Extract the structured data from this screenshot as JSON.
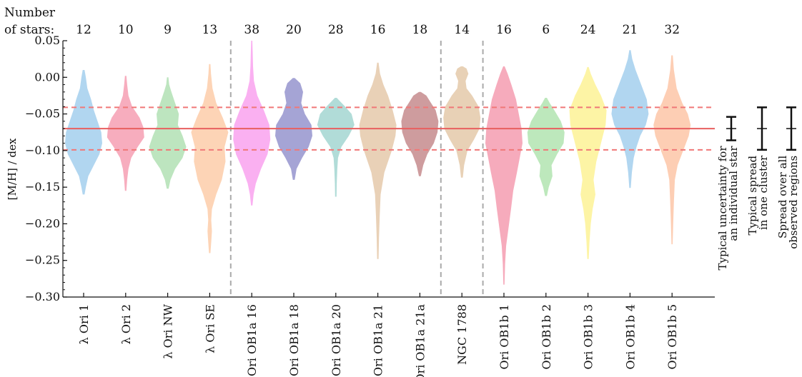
{
  "chart_data": {
    "type": "violin",
    "ylabel": "[M/H] / dex",
    "ylim": [
      -0.3,
      0.05
    ],
    "yticks": [
      0.05,
      0.0,
      -0.05,
      -0.1,
      -0.15,
      -0.2,
      -0.25,
      -0.3
    ],
    "ytick_labels": [
      "0.05",
      "0.00",
      "−0.05",
      "−0.10",
      "−0.15",
      "−0.20",
      "−0.25",
      "−0.30"
    ],
    "star_count_header": [
      "Number",
      "of stars:"
    ],
    "mean_line": -0.07,
    "spread_lines": [
      -0.041,
      -0.099
    ],
    "group_separators_after": [
      "λ Ori SE",
      "Ori OB1a 21a",
      "NGC 1788"
    ],
    "categories": [
      "λ Ori 1",
      "λ Ori 2",
      "λ Ori NW",
      "λ Ori SE",
      "Ori OB1a 16",
      "Ori OB1a 18",
      "Ori OB1a 20",
      "Ori OB1a 21",
      "Ori OB1a 21a",
      "NGC 1788",
      "Ori OB1b 1",
      "Ori OB1b 2",
      "Ori OB1b 3",
      "Ori OB1b 4",
      "Ori OB1b 5"
    ],
    "star_counts": [
      12,
      10,
      9,
      13,
      38,
      20,
      28,
      16,
      18,
      14,
      16,
      6,
      24,
      21,
      32
    ],
    "colors": [
      "#a9d2ee",
      "#f6a4b7",
      "#b6e2b8",
      "#fdcfae",
      "#f9a7ef",
      "#9b9ad0",
      "#a9d8d4",
      "#e7ccaf",
      "#c99194",
      "#e6ccae",
      "#f5a2b5",
      "#b6e6b5",
      "#fdf39b",
      "#a9d1ee",
      "#fdc9ac"
    ],
    "violins": [
      {
        "min": -0.16,
        "max": 0.01,
        "profile": [
          [
            -0.16,
            0.05
          ],
          [
            -0.15,
            0.12
          ],
          [
            -0.135,
            0.25
          ],
          [
            -0.12,
            0.55
          ],
          [
            -0.105,
            0.85
          ],
          [
            -0.09,
            1.0
          ],
          [
            -0.075,
            0.95
          ],
          [
            -0.06,
            0.75
          ],
          [
            -0.045,
            0.55
          ],
          [
            -0.03,
            0.4
          ],
          [
            -0.015,
            0.2
          ],
          [
            0.0,
            0.12
          ],
          [
            0.01,
            0.05
          ]
        ]
      },
      {
        "min": -0.155,
        "max": 0.002,
        "profile": [
          [
            -0.155,
            0.04
          ],
          [
            -0.14,
            0.08
          ],
          [
            -0.125,
            0.15
          ],
          [
            -0.11,
            0.3
          ],
          [
            -0.095,
            0.65
          ],
          [
            -0.082,
            1.0
          ],
          [
            -0.068,
            0.95
          ],
          [
            -0.055,
            0.75
          ],
          [
            -0.04,
            0.35
          ],
          [
            -0.025,
            0.15
          ],
          [
            -0.01,
            0.08
          ],
          [
            0.002,
            0.04
          ]
        ]
      },
      {
        "min": -0.152,
        "max": 0.0,
        "profile": [
          [
            -0.152,
            0.05
          ],
          [
            -0.14,
            0.15
          ],
          [
            -0.125,
            0.4
          ],
          [
            -0.11,
            0.8
          ],
          [
            -0.095,
            1.0
          ],
          [
            -0.08,
            0.8
          ],
          [
            -0.065,
            0.55
          ],
          [
            -0.05,
            0.6
          ],
          [
            -0.035,
            0.4
          ],
          [
            -0.02,
            0.2
          ],
          [
            -0.01,
            0.08
          ],
          [
            0.0,
            0.04
          ]
        ]
      },
      {
        "min": -0.24,
        "max": 0.018,
        "profile": [
          [
            -0.24,
            0.04
          ],
          [
            -0.225,
            0.08
          ],
          [
            -0.21,
            0.12
          ],
          [
            -0.195,
            0.08
          ],
          [
            -0.18,
            0.12
          ],
          [
            -0.16,
            0.35
          ],
          [
            -0.14,
            0.65
          ],
          [
            -0.115,
            0.85
          ],
          [
            -0.095,
            0.8
          ],
          [
            -0.075,
            1.0
          ],
          [
            -0.055,
            0.7
          ],
          [
            -0.035,
            0.35
          ],
          [
            -0.015,
            0.15
          ],
          [
            0.005,
            0.07
          ],
          [
            0.018,
            0.04
          ]
        ]
      },
      {
        "min": -0.175,
        "max": 0.05,
        "profile": [
          [
            -0.175,
            0.04
          ],
          [
            -0.16,
            0.1
          ],
          [
            -0.145,
            0.22
          ],
          [
            -0.125,
            0.5
          ],
          [
            -0.105,
            0.85
          ],
          [
            -0.085,
            1.0
          ],
          [
            -0.065,
            0.95
          ],
          [
            -0.045,
            0.65
          ],
          [
            -0.025,
            0.3
          ],
          [
            -0.005,
            0.12
          ],
          [
            0.015,
            0.07
          ],
          [
            0.035,
            0.05
          ],
          [
            0.05,
            0.03
          ]
        ]
      },
      {
        "min": -0.14,
        "max": -0.001,
        "profile": [
          [
            -0.14,
            0.05
          ],
          [
            -0.125,
            0.15
          ],
          [
            -0.11,
            0.45
          ],
          [
            -0.095,
            0.8
          ],
          [
            -0.08,
            1.0
          ],
          [
            -0.065,
            0.95
          ],
          [
            -0.05,
            0.6
          ],
          [
            -0.035,
            0.4
          ],
          [
            -0.02,
            0.5
          ],
          [
            -0.008,
            0.35
          ],
          [
            -0.001,
            0.05
          ]
        ]
      },
      {
        "min": -0.163,
        "max": -0.028,
        "profile": [
          [
            -0.163,
            0.04
          ],
          [
            -0.145,
            0.05
          ],
          [
            -0.125,
            0.08
          ],
          [
            -0.11,
            0.12
          ],
          [
            -0.095,
            0.3
          ],
          [
            -0.08,
            0.7
          ],
          [
            -0.065,
            1.0
          ],
          [
            -0.05,
            0.85
          ],
          [
            -0.04,
            0.5
          ],
          [
            -0.032,
            0.2
          ],
          [
            -0.028,
            0.05
          ]
        ]
      },
      {
        "min": -0.248,
        "max": 0.02,
        "profile": [
          [
            -0.248,
            0.04
          ],
          [
            -0.22,
            0.06
          ],
          [
            -0.19,
            0.1
          ],
          [
            -0.16,
            0.15
          ],
          [
            -0.13,
            0.35
          ],
          [
            -0.1,
            0.75
          ],
          [
            -0.08,
            0.95
          ],
          [
            -0.065,
            1.0
          ],
          [
            -0.045,
            0.8
          ],
          [
            -0.025,
            0.55
          ],
          [
            -0.01,
            0.3
          ],
          [
            0.005,
            0.12
          ],
          [
            0.02,
            0.04
          ]
        ]
      },
      {
        "min": -0.135,
        "max": -0.02,
        "profile": [
          [
            -0.135,
            0.05
          ],
          [
            -0.12,
            0.18
          ],
          [
            -0.105,
            0.4
          ],
          [
            -0.09,
            0.75
          ],
          [
            -0.075,
            0.95
          ],
          [
            -0.06,
            1.0
          ],
          [
            -0.045,
            0.85
          ],
          [
            -0.035,
            0.6
          ],
          [
            -0.025,
            0.35
          ],
          [
            -0.02,
            0.05
          ]
        ]
      },
      {
        "min": -0.137,
        "max": 0.015,
        "profile": [
          [
            -0.137,
            0.05
          ],
          [
            -0.12,
            0.12
          ],
          [
            -0.1,
            0.3
          ],
          [
            -0.085,
            0.65
          ],
          [
            -0.07,
            0.95
          ],
          [
            -0.055,
            1.0
          ],
          [
            -0.04,
            0.9
          ],
          [
            -0.025,
            0.55
          ],
          [
            -0.015,
            0.25
          ],
          [
            -0.005,
            0.2
          ],
          [
            0.005,
            0.35
          ],
          [
            0.012,
            0.25
          ],
          [
            0.015,
            0.05
          ]
        ]
      },
      {
        "min": -0.283,
        "max": 0.015,
        "profile": [
          [
            -0.283,
            0.03
          ],
          [
            -0.255,
            0.06
          ],
          [
            -0.23,
            0.12
          ],
          [
            -0.205,
            0.25
          ],
          [
            -0.18,
            0.38
          ],
          [
            -0.155,
            0.5
          ],
          [
            -0.13,
            0.7
          ],
          [
            -0.11,
            0.85
          ],
          [
            -0.09,
            1.0
          ],
          [
            -0.07,
            0.95
          ],
          [
            -0.05,
            0.8
          ],
          [
            -0.03,
            0.65
          ],
          [
            -0.01,
            0.4
          ],
          [
            0.005,
            0.2
          ],
          [
            0.015,
            0.04
          ]
        ]
      },
      {
        "min": -0.162,
        "max": -0.028,
        "profile": [
          [
            -0.162,
            0.05
          ],
          [
            -0.15,
            0.15
          ],
          [
            -0.135,
            0.35
          ],
          [
            -0.12,
            0.3
          ],
          [
            -0.105,
            0.6
          ],
          [
            -0.09,
            0.95
          ],
          [
            -0.075,
            1.0
          ],
          [
            -0.06,
            0.8
          ],
          [
            -0.045,
            0.45
          ],
          [
            -0.035,
            0.2
          ],
          [
            -0.028,
            0.05
          ]
        ]
      },
      {
        "min": -0.248,
        "max": 0.014,
        "profile": [
          [
            -0.248,
            0.04
          ],
          [
            -0.225,
            0.08
          ],
          [
            -0.2,
            0.15
          ],
          [
            -0.18,
            0.25
          ],
          [
            -0.16,
            0.4
          ],
          [
            -0.14,
            0.3
          ],
          [
            -0.115,
            0.45
          ],
          [
            -0.09,
            0.7
          ],
          [
            -0.065,
            0.95
          ],
          [
            -0.045,
            1.0
          ],
          [
            -0.025,
            0.7
          ],
          [
            -0.01,
            0.4
          ],
          [
            0.005,
            0.15
          ],
          [
            0.014,
            0.04
          ]
        ]
      },
      {
        "min": -0.151,
        "max": 0.037,
        "profile": [
          [
            -0.151,
            0.04
          ],
          [
            -0.13,
            0.1
          ],
          [
            -0.11,
            0.2
          ],
          [
            -0.095,
            0.35
          ],
          [
            -0.08,
            0.55
          ],
          [
            -0.065,
            0.85
          ],
          [
            -0.05,
            1.0
          ],
          [
            -0.03,
            0.9
          ],
          [
            -0.01,
            0.6
          ],
          [
            0.01,
            0.3
          ],
          [
            0.025,
            0.12
          ],
          [
            0.037,
            0.04
          ]
        ]
      },
      {
        "min": -0.228,
        "max": 0.03,
        "profile": [
          [
            -0.228,
            0.03
          ],
          [
            -0.2,
            0.06
          ],
          [
            -0.17,
            0.1
          ],
          [
            -0.14,
            0.15
          ],
          [
            -0.12,
            0.3
          ],
          [
            -0.1,
            0.6
          ],
          [
            -0.08,
            0.9
          ],
          [
            -0.065,
            1.0
          ],
          [
            -0.05,
            0.85
          ],
          [
            -0.035,
            0.55
          ],
          [
            -0.015,
            0.25
          ],
          [
            0.01,
            0.1
          ],
          [
            0.03,
            0.04
          ]
        ]
      }
    ],
    "error_bars": [
      {
        "half_width": 0.016,
        "label_lines": [
          "Typical uncertainty for",
          "an individual star"
        ]
      },
      {
        "half_width": 0.029,
        "label_lines": [
          "Typical spread",
          "in one cluster"
        ]
      },
      {
        "half_width": 0.029,
        "label_lines": [
          "Spread over all",
          "observed regions"
        ]
      }
    ]
  }
}
